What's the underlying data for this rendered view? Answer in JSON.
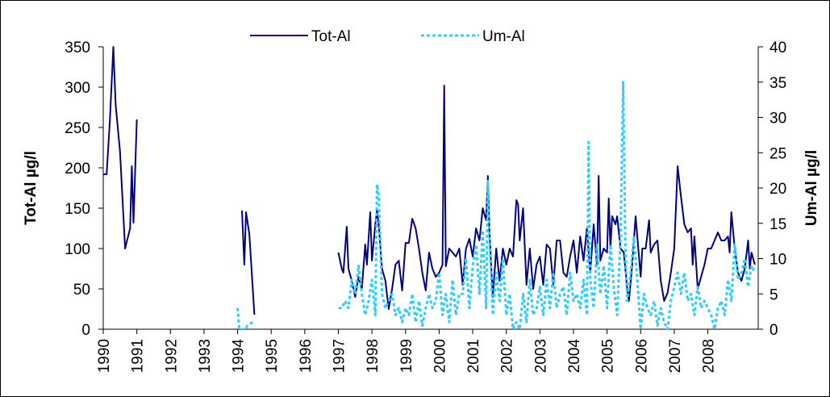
{
  "chart_data": {
    "type": "line",
    "xlim": [
      1990,
      2009.5
    ],
    "xticks": [
      1990,
      1991,
      1992,
      1993,
      1994,
      1995,
      1996,
      1997,
      1998,
      1999,
      2000,
      2001,
      2002,
      2003,
      2004,
      2005,
      2006,
      2007,
      2008
    ],
    "ylim": [
      0,
      350
    ],
    "yticks": [
      0,
      50,
      100,
      150,
      200,
      250,
      300,
      350
    ],
    "y2lim": [
      0,
      40
    ],
    "y2ticks": [
      0,
      5,
      10,
      15,
      20,
      25,
      30,
      35,
      40
    ],
    "ylabel": "Tot-Al µg/l",
    "y2label": "Um-Al µg/l",
    "legend": "top",
    "series": [
      {
        "name": "Tot-Al",
        "color": "#000080",
        "axis": "y",
        "style": "solid",
        "x": [
          1990.0,
          1990.1,
          1990.2,
          1990.3,
          1990.37,
          1990.5,
          1990.65,
          1990.8,
          1990.85,
          1990.9,
          1991.0,
          1991.05,
          1994.13,
          1994.2,
          1994.25,
          1994.35,
          1994.5,
          1994.55,
          1997.0,
          1997.1,
          1997.15,
          1997.25,
          1997.3,
          1997.4,
          1997.5,
          1997.6,
          1997.7,
          1997.8,
          1997.85,
          1997.95,
          1998.0,
          1998.1,
          1998.15,
          1998.2,
          1998.3,
          1998.4,
          1998.5,
          1998.6,
          1998.7,
          1998.8,
          1998.9,
          1999.0,
          1999.1,
          1999.2,
          1999.3,
          1999.4,
          1999.5,
          1999.6,
          1999.7,
          1999.8,
          1999.9,
          2000.0,
          2000.1,
          2000.15,
          2000.2,
          2000.3,
          2000.4,
          2000.5,
          2000.6,
          2000.7,
          2000.8,
          2000.9,
          2001.0,
          2001.1,
          2001.2,
          2001.3,
          2001.4,
          2001.45,
          2001.5,
          2001.6,
          2001.7,
          2001.8,
          2001.9,
          2002.0,
          2002.1,
          2002.2,
          2002.3,
          2002.35,
          2002.4,
          2002.5,
          2002.6,
          2002.7,
          2002.8,
          2002.9,
          2003.0,
          2003.1,
          2003.2,
          2003.3,
          2003.4,
          2003.5,
          2003.6,
          2003.7,
          2003.8,
          2003.9,
          2004.0,
          2004.1,
          2004.2,
          2004.3,
          2004.4,
          2004.5,
          2004.6,
          2004.7,
          2004.75,
          2004.8,
          2004.9,
          2005.0,
          2005.05,
          2005.1,
          2005.15,
          2005.25,
          2005.3,
          2005.4,
          2005.5,
          2005.6,
          2005.65,
          2005.75,
          2005.85,
          2005.9,
          2006.0,
          2006.05,
          2006.15,
          2006.25,
          2006.3,
          2006.4,
          2006.5,
          2006.6,
          2006.7,
          2006.8,
          2006.9,
          2007.0,
          2007.1,
          2007.2,
          2007.3,
          2007.4,
          2007.5,
          2007.55,
          2007.6,
          2007.7,
          2007.8,
          2007.9,
          2008.0,
          2008.1,
          2008.2,
          2008.3,
          2008.4,
          2008.5,
          2008.6,
          2008.65,
          2008.7,
          2008.8,
          2008.9,
          2009.0,
          2009.1,
          2009.2,
          2009.25,
          2009.3,
          2009.4
        ],
        "values": [
          192,
          192,
          260,
          350,
          278,
          220,
          100,
          125,
          202,
          132,
          260,
          null,
          147,
          80,
          145,
          118,
          18,
          null,
          95,
          75,
          70,
          127,
          75,
          60,
          40,
          65,
          50,
          105,
          80,
          145,
          85,
          130,
          147,
          130,
          75,
          60,
          25,
          50,
          80,
          85,
          48,
          107,
          107,
          137,
          125,
          100,
          70,
          48,
          95,
          75,
          65,
          70,
          80,
          302,
          78,
          100,
          95,
          90,
          100,
          55,
          100,
          112,
          90,
          125,
          110,
          150,
          135,
          190,
          120,
          40,
          100,
          60,
          100,
          80,
          100,
          90,
          160,
          155,
          110,
          150,
          55,
          100,
          50,
          80,
          90,
          55,
          105,
          100,
          55,
          110,
          110,
          70,
          65,
          90,
          110,
          70,
          115,
          85,
          125,
          70,
          130,
          80,
          190,
          85,
          100,
          95,
          162,
          100,
          140,
          130,
          140,
          100,
          95,
          50,
          35,
          80,
          140,
          115,
          65,
          100,
          100,
          135,
          95,
          105,
          110,
          60,
          35,
          45,
          70,
          100,
          202,
          165,
          130,
          120,
          125,
          80,
          115,
          50,
          65,
          80,
          100,
          100,
          110,
          120,
          110,
          110,
          115,
          95,
          145,
          100,
          70,
          60,
          75,
          110,
          75,
          95,
          80
        ]
      },
      {
        "name": "Um-Al",
        "color": "#33CCFF",
        "axis": "y2",
        "style": "dashed",
        "x": [
          1994.0,
          1994.05,
          1994.2,
          1994.3,
          1994.45,
          1994.5,
          1997.0,
          1997.1,
          1997.2,
          1997.3,
          1997.4,
          1997.5,
          1997.6,
          1997.7,
          1997.8,
          1997.9,
          1998.0,
          1998.1,
          1998.15,
          1998.2,
          1998.3,
          1998.4,
          1998.5,
          1998.6,
          1998.7,
          1998.8,
          1998.9,
          1999.0,
          1999.1,
          1999.2,
          1999.3,
          1999.4,
          1999.5,
          1999.6,
          1999.7,
          1999.8,
          1999.9,
          2000.0,
          2000.1,
          2000.2,
          2000.3,
          2000.4,
          2000.5,
          2000.6,
          2000.7,
          2000.8,
          2000.9,
          2001.0,
          2001.1,
          2001.2,
          2001.3,
          2001.4,
          2001.45,
          2001.5,
          2001.6,
          2001.7,
          2001.8,
          2001.9,
          2002.0,
          2002.1,
          2002.2,
          2002.3,
          2002.4,
          2002.5,
          2002.6,
          2002.7,
          2002.8,
          2002.9,
          2003.0,
          2003.1,
          2003.2,
          2003.3,
          2003.4,
          2003.5,
          2003.6,
          2003.7,
          2003.8,
          2003.9,
          2004.0,
          2004.1,
          2004.2,
          2004.3,
          2004.4,
          2004.45,
          2004.5,
          2004.6,
          2004.7,
          2004.8,
          2004.9,
          2005.0,
          2005.1,
          2005.2,
          2005.3,
          2005.4,
          2005.48,
          2005.55,
          2005.6,
          2005.7,
          2005.8,
          2005.9,
          2006.0,
          2006.1,
          2006.2,
          2006.3,
          2006.4,
          2006.5,
          2006.6,
          2006.7,
          2006.8,
          2006.9,
          2007.0,
          2007.1,
          2007.2,
          2007.3,
          2007.4,
          2007.5,
          2007.6,
          2007.7,
          2007.8,
          2007.9,
          2008.0,
          2008.1,
          2008.2,
          2008.3,
          2008.4,
          2008.5,
          2008.6,
          2008.7,
          2008.8,
          2008.9,
          2009.0,
          2009.1,
          2009.2,
          2009.3,
          2009.4
        ],
        "values": [
          3,
          0,
          0,
          0.5,
          1,
          null,
          3,
          3,
          4,
          3,
          7,
          5,
          9,
          5,
          2,
          4,
          7,
          2,
          20.5,
          19,
          5,
          3,
          4,
          5,
          2,
          3,
          1,
          3,
          2,
          5,
          1,
          4,
          0.5,
          3,
          5,
          3,
          4,
          8,
          2,
          5,
          1,
          7,
          2,
          5,
          5,
          10,
          3,
          9,
          12,
          5,
          14,
          3,
          21,
          13,
          2,
          8,
          4,
          10,
          2,
          5,
          0,
          1,
          0,
          5,
          1,
          7,
          2,
          3,
          6,
          2,
          7,
          3,
          8,
          3,
          5,
          6,
          2,
          8,
          4,
          5,
          3,
          7,
          2,
          26.5,
          7,
          3,
          12,
          5,
          9,
          3,
          12,
          6,
          2,
          13,
          35,
          10,
          4,
          8,
          13,
          7,
          0,
          5,
          3,
          2,
          4,
          0.5,
          3,
          1,
          0,
          4,
          6,
          8,
          5,
          8,
          4,
          5,
          2,
          6,
          3,
          4,
          3,
          2,
          0,
          3,
          4,
          2,
          7,
          4,
          12,
          7,
          8,
          10,
          6,
          9,
          8
        ]
      }
    ]
  }
}
